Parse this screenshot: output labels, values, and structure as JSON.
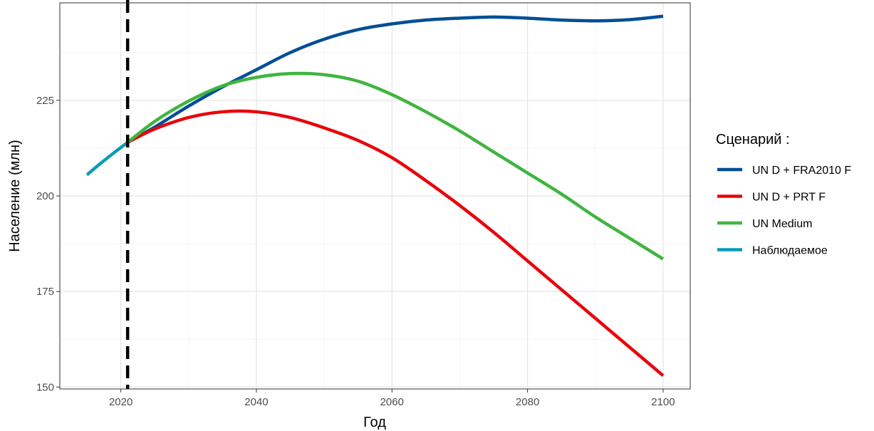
{
  "chart_data": {
    "type": "line",
    "title": "",
    "xlabel": "Год",
    "ylabel": "Население (млн)",
    "xlim": [
      2011,
      2104
    ],
    "ylim": [
      149.5,
      250.5
    ],
    "x_ticks": [
      2020,
      2040,
      2060,
      2080,
      2100
    ],
    "y_ticks": [
      150,
      175,
      200,
      225
    ],
    "x_minor_ticks": [
      2030,
      2050,
      2070,
      2090
    ],
    "y_minor_ticks": [
      162.5,
      187.5,
      212.5,
      237.5
    ],
    "grid": true,
    "vertical_reference_line": {
      "x": 2021,
      "style": "dashed",
      "color": "#000000"
    },
    "legend": {
      "title": "Сценарий :",
      "placement": "right"
    },
    "series": [
      {
        "name": "UN D + FRA2010 F",
        "color": "#034e96",
        "points": [
          [
            2021,
            214
          ],
          [
            2025,
            218
          ],
          [
            2030,
            223.5
          ],
          [
            2035,
            228.5
          ],
          [
            2040,
            233
          ],
          [
            2045,
            237.5
          ],
          [
            2050,
            241
          ],
          [
            2055,
            243.5
          ],
          [
            2060,
            245
          ],
          [
            2065,
            246
          ],
          [
            2070,
            246.5
          ],
          [
            2075,
            246.8
          ],
          [
            2080,
            246.5
          ],
          [
            2085,
            246
          ],
          [
            2090,
            245.8
          ],
          [
            2095,
            246.1
          ],
          [
            2100,
            247
          ]
        ]
      },
      {
        "name": "UN D + PRT F",
        "color": "#e8060c",
        "points": [
          [
            2021,
            214
          ],
          [
            2025,
            217.5
          ],
          [
            2030,
            220.5
          ],
          [
            2035,
            222
          ],
          [
            2040,
            222
          ],
          [
            2045,
            220.5
          ],
          [
            2050,
            217.8
          ],
          [
            2055,
            214.5
          ],
          [
            2060,
            210
          ],
          [
            2065,
            204
          ],
          [
            2070,
            197.5
          ],
          [
            2075,
            190.5
          ],
          [
            2080,
            183
          ],
          [
            2085,
            175.5
          ],
          [
            2090,
            168
          ],
          [
            2095,
            160.5
          ],
          [
            2100,
            153
          ]
        ]
      },
      {
        "name": "UN Medium",
        "color": "#3fb540",
        "points": [
          [
            2021,
            214
          ],
          [
            2025,
            219.5
          ],
          [
            2030,
            224.8
          ],
          [
            2035,
            228.8
          ],
          [
            2040,
            231
          ],
          [
            2045,
            232
          ],
          [
            2050,
            231.7
          ],
          [
            2055,
            230
          ],
          [
            2060,
            226.5
          ],
          [
            2065,
            222
          ],
          [
            2070,
            217
          ],
          [
            2075,
            211.5
          ],
          [
            2080,
            206
          ],
          [
            2085,
            200.5
          ],
          [
            2090,
            194.5
          ],
          [
            2095,
            189
          ],
          [
            2100,
            183.5
          ]
        ]
      },
      {
        "name": "Наблюдаемое",
        "color": "#0d9ab8",
        "points": [
          [
            2015,
            205.5
          ],
          [
            2017,
            208.5
          ],
          [
            2019,
            211.3
          ],
          [
            2021,
            214
          ]
        ]
      }
    ]
  }
}
